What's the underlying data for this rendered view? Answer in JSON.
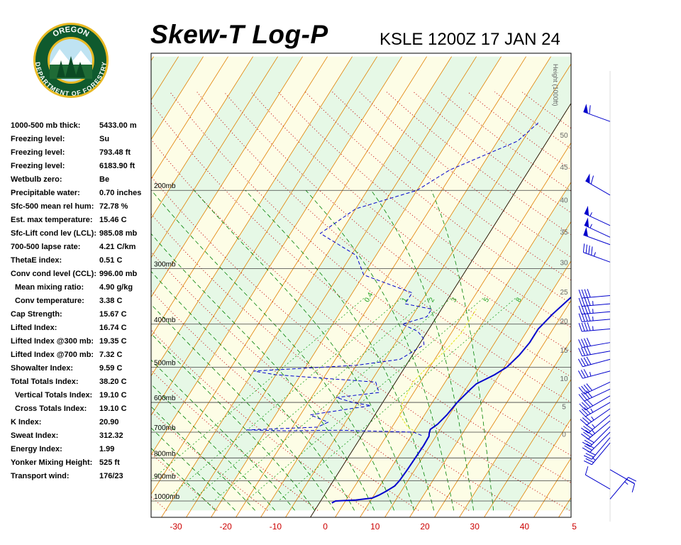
{
  "header": {
    "title": "Skew-T Log-P",
    "station": "KSLE 1200Z 17 JAN 24"
  },
  "logo": {
    "top_text": "OREGON",
    "bottom_text": "DEPARTMENT OF FORESTRY",
    "colors": {
      "ring": "#0f5a2e",
      "gold": "#e8b923",
      "sky": "#bfe3f2"
    }
  },
  "indices": [
    {
      "label": "1000-500 mb thick:",
      "value": "5433.00 m"
    },
    {
      "label": "Freezing level:",
      "value": "Su"
    },
    {
      "label": "Freezing level:",
      "value": "793.48 ft"
    },
    {
      "label": "Freezing level:",
      "value": "6183.90 ft"
    },
    {
      "label": "Wetbulb zero:",
      "value": "Be"
    },
    {
      "label": "Precipitable water:",
      "value": "0.70 inches"
    },
    {
      "label": "Sfc-500 mean rel hum:",
      "value": "72.78 %"
    },
    {
      "label": "Est. max temperature:",
      "value": "15.46 C"
    },
    {
      "label": "Sfc-Lift cond lev (LCL):",
      "value": "985.08 mb"
    },
    {
      "label": "700-500 lapse rate:",
      "value": "4.21 C/km"
    },
    {
      "label": "ThetaE index:",
      "value": "0.51 C"
    },
    {
      "label": "Conv cond level (CCL):",
      "value": "996.00 mb"
    },
    {
      "label": "Mean mixing ratio:",
      "value": "4.90 g/kg",
      "indent": true
    },
    {
      "label": "Conv temperature:",
      "value": "3.38 C",
      "indent": true
    },
    {
      "label": "Cap Strength:",
      "value": "15.67 C"
    },
    {
      "label": "Lifted Index:",
      "value": "16.74 C"
    },
    {
      "label": "Lifted Index @300 mb:",
      "value": "19.35 C"
    },
    {
      "label": "Lifted Index @700 mb:",
      "value": "7.32 C"
    },
    {
      "label": "Showalter Index:",
      "value": "9.59 C"
    },
    {
      "label": "Total Totals Index:",
      "value": "38.20 C"
    },
    {
      "label": "Vertical Totals Index:",
      "value": "19.10 C",
      "indent": true
    },
    {
      "label": "Cross Totals Index:",
      "value": "19.10 C",
      "indent": true
    },
    {
      "label": "K Index:",
      "value": "20.90"
    },
    {
      "label": "Sweat Index:",
      "value": "312.32"
    },
    {
      "label": "Energy Index:",
      "value": "1.99"
    },
    {
      "label": "Yonker Mixing Height:",
      "value": "525 ft"
    },
    {
      "label": "Transport wind:",
      "value": "176/23"
    }
  ],
  "chart_data": {
    "type": "line",
    "x_ticks": [
      "-30",
      "-20",
      "-10",
      "0",
      "10",
      "20",
      "30",
      "40",
      "5"
    ],
    "xlim": [
      -33,
      50
    ],
    "pressure_levels": [
      {
        "p": 200,
        "label": "200mb"
      },
      {
        "p": 300,
        "label": "300mb"
      },
      {
        "p": 400,
        "label": "400mb"
      },
      {
        "p": 500,
        "label": "500mb"
      },
      {
        "p": 600,
        "label": "600mb"
      },
      {
        "p": 700,
        "label": "700mb"
      },
      {
        "p": 800,
        "label": "800mb"
      },
      {
        "p": 900,
        "label": "900mb"
      },
      {
        "p": 1000,
        "label": "1000mb"
      }
    ],
    "height_axis": {
      "title": "Height (1000ft)",
      "ticks": [
        {
          "p": 150,
          "label": "50"
        },
        {
          "p": 177,
          "label": "45"
        },
        {
          "p": 210,
          "label": "40"
        },
        {
          "p": 248,
          "label": "35"
        },
        {
          "p": 290,
          "label": "30"
        },
        {
          "p": 338,
          "label": "25"
        },
        {
          "p": 393,
          "label": "20"
        },
        {
          "p": 457,
          "label": "15"
        },
        {
          "p": 529,
          "label": "10"
        },
        {
          "p": 612,
          "label": "5"
        },
        {
          "p": 706,
          "label": "0"
        }
      ]
    },
    "mixing_ratio_labels": [
      {
        "label": "0.4",
        "T": -17
      },
      {
        "label": "1",
        "T": -9.5
      },
      {
        "label": "2",
        "T": -4
      },
      {
        "label": "3",
        "T": 0.5
      },
      {
        "label": "5",
        "T": 7
      },
      {
        "label": "8",
        "T": 13.5
      }
    ],
    "series": [],
    "temperature": [
      [
        1010,
        2.5
      ],
      [
        1000,
        3
      ],
      [
        995,
        7
      ],
      [
        985,
        10
      ],
      [
        970,
        11
      ],
      [
        950,
        12
      ],
      [
        925,
        13
      ],
      [
        900,
        13.3
      ],
      [
        850,
        13.5
      ],
      [
        800,
        13.6
      ],
      [
        750,
        13.7
      ],
      [
        715,
        13.6
      ],
      [
        705,
        13.3
      ],
      [
        690,
        13
      ],
      [
        672,
        13.8
      ],
      [
        640,
        14.5
      ],
      [
        600,
        15
      ],
      [
        560,
        16
      ],
      [
        545,
        16.5
      ],
      [
        520,
        19
      ],
      [
        500,
        20.5
      ],
      [
        470,
        21.5
      ],
      [
        440,
        22
      ],
      [
        410,
        22
      ],
      [
        380,
        23
      ],
      [
        350,
        24.5
      ],
      [
        300,
        28
      ],
      [
        270,
        29.5
      ],
      [
        255,
        27
      ],
      [
        250,
        29
      ],
      [
        225,
        35
      ],
      [
        205,
        42
      ],
      [
        185,
        49
      ],
      [
        165,
        49
      ],
      [
        150,
        48
      ],
      [
        140,
        48
      ]
    ],
    "dewpoint": [
      [
        712,
        12
      ],
      [
        700,
        10
      ],
      [
        693,
        -5
      ],
      [
        695,
        -16
      ],
      [
        692,
        -24
      ],
      [
        682,
        -10
      ],
      [
        665,
        -8.5
      ],
      [
        640,
        -13
      ],
      [
        610,
        -2
      ],
      [
        600,
        -6
      ],
      [
        585,
        -10
      ],
      [
        570,
        -2
      ],
      [
        540,
        -4
      ],
      [
        520,
        -25
      ],
      [
        510,
        -30
      ],
      [
        495,
        -10
      ],
      [
        480,
        -2
      ],
      [
        445,
        1
      ],
      [
        430,
        0
      ],
      [
        415,
        -2
      ],
      [
        400,
        -6
      ],
      [
        385,
        -2
      ],
      [
        370,
        -2
      ],
      [
        360,
        -8
      ],
      [
        340,
        -8
      ],
      [
        310,
        -20
      ],
      [
        280,
        -24
      ],
      [
        250,
        -34
      ],
      [
        220,
        -30
      ],
      [
        200,
        -20
      ],
      [
        180,
        -16
      ],
      [
        155,
        -6
      ],
      [
        140,
        -4
      ]
    ],
    "parcel": [
      [
        700,
        10.5
      ],
      [
        680,
        8
      ],
      [
        640,
        5
      ],
      [
        600,
        4
      ],
      [
        540,
        3.5
      ],
      [
        500,
        4.5
      ],
      [
        460,
        6
      ],
      [
        420,
        7
      ],
      [
        390,
        7
      ],
      [
        370,
        7
      ]
    ],
    "wind_barbs": [
      {
        "p": 140,
        "dir": 290,
        "speed": 60
      },
      {
        "p": 205,
        "dir": 300,
        "speed": 60
      },
      {
        "p": 240,
        "dir": 295,
        "speed": 55
      },
      {
        "p": 255,
        "dir": 295,
        "speed": 55
      },
      {
        "p": 265,
        "dir": 290,
        "speed": 50
      },
      {
        "p": 290,
        "dir": 290,
        "speed": 45
      },
      {
        "p": 345,
        "dir": 265,
        "speed": 40
      },
      {
        "p": 360,
        "dir": 265,
        "speed": 45
      },
      {
        "p": 375,
        "dir": 265,
        "speed": 45
      },
      {
        "p": 390,
        "dir": 265,
        "speed": 45
      },
      {
        "p": 410,
        "dir": 265,
        "speed": 45
      },
      {
        "p": 440,
        "dir": 260,
        "speed": 40
      },
      {
        "p": 460,
        "dir": 260,
        "speed": 40
      },
      {
        "p": 480,
        "dir": 255,
        "speed": 40
      },
      {
        "p": 510,
        "dir": 255,
        "speed": 35
      },
      {
        "p": 540,
        "dir": 245,
        "speed": 40
      },
      {
        "p": 560,
        "dir": 245,
        "speed": 40
      },
      {
        "p": 580,
        "dir": 240,
        "speed": 40
      },
      {
        "p": 600,
        "dir": 240,
        "speed": 35
      },
      {
        "p": 620,
        "dir": 235,
        "speed": 35
      },
      {
        "p": 640,
        "dir": 230,
        "speed": 35
      },
      {
        "p": 660,
        "dir": 230,
        "speed": 35
      },
      {
        "p": 680,
        "dir": 225,
        "speed": 30
      },
      {
        "p": 700,
        "dir": 225,
        "speed": 30
      },
      {
        "p": 720,
        "dir": 220,
        "speed": 30
      },
      {
        "p": 740,
        "dir": 220,
        "speed": 25
      },
      {
        "p": 850,
        "dir": 120,
        "speed": 10
      },
      {
        "p": 940,
        "dir": 300,
        "speed": 10
      },
      {
        "p": 990,
        "dir": 40,
        "speed": 25
      }
    ],
    "colors": {
      "temperature": "#0000cc",
      "dewpoint": "#0000cc",
      "parcel": "#e8e830",
      "isotherm": "#e08000",
      "dry_adiabat": "#c00000",
      "moist_adiabat": "#008000",
      "mixing_ratio": "#20a020",
      "isobar": "#404040",
      "band_a": "#fdfde6",
      "band_b": "#e6f8e6",
      "tick_label": "#cc0000"
    }
  }
}
